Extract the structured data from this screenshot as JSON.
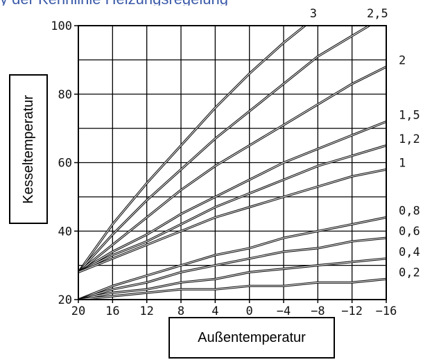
{
  "top_title": "y der Kennlinie Heizungsregelung",
  "chart_data": {
    "type": "line",
    "title": "",
    "xlabel": "Außentemperatur",
    "ylabel": "Kesseltemperatur",
    "xlim": [
      20,
      -16
    ],
    "ylim": [
      20,
      100
    ],
    "x_ticks": [
      20,
      16,
      12,
      8,
      4,
      0,
      -4,
      -8,
      -12,
      -16
    ],
    "x_tick_labels": [
      "20",
      "16",
      "12",
      "8",
      "4",
      "0",
      "−4",
      "−8",
      "−12",
      "−16"
    ],
    "y_ticks": [
      20,
      40,
      60,
      80,
      100
    ],
    "y_tick_labels": [
      "20",
      "40",
      "60",
      "80",
      "100"
    ],
    "grid": true,
    "x": [
      20,
      16,
      12,
      8,
      4,
      0,
      -4,
      -8,
      -12,
      -16
    ],
    "series": [
      {
        "name": "3",
        "values": [
          28,
          42,
          54,
          65,
          76,
          86,
          95,
          103,
          null,
          null
        ]
      },
      {
        "name": "2,5",
        "values": [
          28,
          39,
          49,
          58,
          67,
          75,
          83,
          91,
          97,
          103
        ]
      },
      {
        "name": "2",
        "values": [
          28,
          36,
          44,
          52,
          59,
          65,
          71,
          77,
          83,
          88
        ]
      },
      {
        "name": "1,5",
        "values": [
          28,
          34,
          39,
          45,
          50,
          55,
          60,
          64,
          68,
          72
        ]
      },
      {
        "name": "1,2",
        "values": [
          28,
          33,
          37,
          42,
          47,
          51,
          55,
          59,
          62,
          65
        ]
      },
      {
        "name": "1",
        "values": [
          28,
          32,
          36,
          40,
          44,
          47,
          50,
          53,
          56,
          58
        ]
      },
      {
        "name": "0,8",
        "values": [
          20,
          24,
          27,
          30,
          33,
          35,
          38,
          40,
          42,
          44
        ]
      },
      {
        "name": "0,6",
        "values": [
          20,
          23,
          25,
          28,
          30,
          32,
          34,
          35,
          37,
          38
        ]
      },
      {
        "name": "0,4",
        "values": [
          20,
          22,
          23,
          25,
          26,
          28,
          29,
          30,
          31,
          32
        ]
      },
      {
        "name": "0,2",
        "values": [
          20,
          21,
          22,
          23,
          23,
          24,
          24,
          25,
          25,
          26
        ]
      }
    ]
  }
}
